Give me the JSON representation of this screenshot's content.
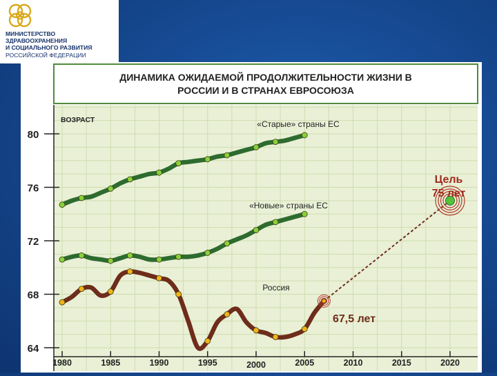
{
  "header": {
    "ministry_lines": [
      "МИНИСТЕРСТВО",
      "ЗДРАВООХРАНЕНИЯ",
      "И СОЦИАЛЬНОГО РАЗВИТИЯ",
      "РОССИЙСКОЙ ФЕДЕРАЦИИ"
    ]
  },
  "colors": {
    "background_blue": "#1a56a6",
    "chart_bg": "#e9f0d6",
    "title_box_bg": "#ffffff",
    "green_line": "#2d6b2f",
    "marker_green": "#8ccf3a",
    "russia_line": "#6e2c1a",
    "marker_orange": "#f2b21a",
    "target_red": "#b23a2c",
    "text_dark": "#222222",
    "accent_red": "#a02a1e"
  },
  "chart_data": {
    "type": "line",
    "title_lines": [
      "ДИНАМИКА ОЖИДАЕМОЙ ПРОДОЛЖИТЕЛЬНОСТИ ЖИЗНИ В",
      "РОССИИ И В СТРАНАХ ЕВРОСОЮЗА"
    ],
    "ylabel": "ВОЗРАСТ",
    "xlabel": "",
    "xlim": [
      1980,
      2020
    ],
    "ylim": [
      64,
      82
    ],
    "x_ticks": [
      "1980",
      "1985",
      "1990",
      "1995",
      "2000",
      "2005",
      "2010",
      "2015",
      "2020"
    ],
    "y_ticks": [
      "64",
      "68",
      "72",
      "76",
      "80"
    ],
    "grid": true,
    "series": [
      {
        "name": "«Старые» страны ЕС",
        "x": [
          1980,
          1981,
          1982,
          1983,
          1984,
          1985,
          1986,
          1987,
          1988,
          1989,
          1990,
          1991,
          1992,
          1993,
          1994,
          1995,
          1996,
          1997,
          1998,
          1999,
          2000,
          2001,
          2002,
          2003,
          2004,
          2005
        ],
        "y": [
          74.7,
          75.0,
          75.2,
          75.3,
          75.6,
          75.9,
          76.3,
          76.6,
          76.8,
          77.0,
          77.1,
          77.4,
          77.8,
          77.9,
          78.0,
          78.1,
          78.3,
          78.4,
          78.6,
          78.8,
          79.0,
          79.3,
          79.4,
          79.5,
          79.7,
          79.9
        ],
        "markers": [
          1980,
          1982,
          1985,
          1987,
          1990,
          1992,
          1995,
          1997,
          2000,
          2002,
          2005
        ]
      },
      {
        "name": "«Новые» страны ЕС",
        "x": [
          1980,
          1981,
          1982,
          1983,
          1984,
          1985,
          1986,
          1987,
          1988,
          1989,
          1990,
          1991,
          1992,
          1993,
          1994,
          1995,
          1996,
          1997,
          1998,
          1999,
          2000,
          2001,
          2002,
          2003,
          2004,
          2005
        ],
        "y": [
          70.6,
          70.8,
          70.9,
          70.7,
          70.6,
          70.5,
          70.7,
          70.9,
          70.8,
          70.6,
          70.6,
          70.7,
          70.8,
          70.8,
          70.9,
          71.1,
          71.4,
          71.8,
          72.1,
          72.4,
          72.8,
          73.2,
          73.4,
          73.6,
          73.8,
          74.0
        ],
        "markers": [
          1980,
          1982,
          1985,
          1987,
          1990,
          1992,
          1995,
          1997,
          2000,
          2002,
          2005
        ]
      },
      {
        "name": "Россия",
        "x": [
          1980,
          1981,
          1982,
          1983,
          1984,
          1985,
          1986,
          1987,
          1988,
          1989,
          1990,
          1991,
          1992,
          1993,
          1994,
          1995,
          1996,
          1997,
          1998,
          1999,
          2000,
          2001,
          2002,
          2003,
          2004,
          2005,
          2006,
          2007
        ],
        "y": [
          67.4,
          67.8,
          68.4,
          68.5,
          67.9,
          68.2,
          69.4,
          69.7,
          69.6,
          69.4,
          69.2,
          69.0,
          68.0,
          66.0,
          64.0,
          64.5,
          65.9,
          66.5,
          66.9,
          65.9,
          65.3,
          65.1,
          64.8,
          64.8,
          65.0,
          65.4,
          66.6,
          67.5
        ],
        "markers": [
          1980,
          1982,
          1985,
          1987,
          1990,
          1992,
          1995,
          1997,
          2000,
          2002,
          2005,
          2007
        ]
      }
    ],
    "current": {
      "x": 2007,
      "y": 67.5,
      "label": "67,5 лет"
    },
    "target": {
      "x": 2020,
      "y": 75,
      "label_line1": "Цель",
      "label_line2": "75 лет"
    }
  }
}
